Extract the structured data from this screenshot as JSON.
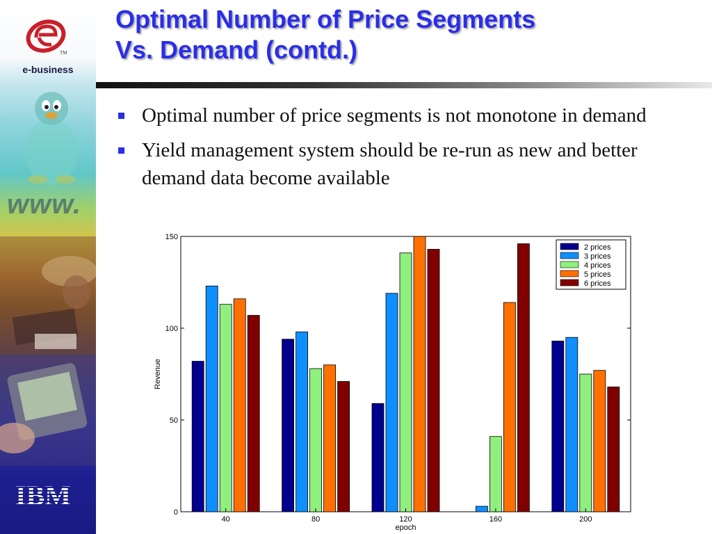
{
  "slide": {
    "title_line1": "Optimal Number of Price Segments",
    "title_line2": "Vs. Demand (contd.)",
    "bullets": [
      "Optimal number of price segments is not monotone in demand",
      "Yield management system should be re-run as new and better demand data become available"
    ]
  },
  "sidebar": {
    "ebusiness_label": "e-business",
    "www_text": "www.",
    "ibm_logo": "IBM",
    "tm_mark": "TM"
  },
  "colors": {
    "title": "#2a2ee8",
    "series": [
      "#00008f",
      "#0f8fff",
      "#8ff07f",
      "#ff7000",
      "#800000"
    ]
  },
  "chart_data": {
    "type": "bar",
    "title": "",
    "xlabel": "epoch",
    "ylabel": "Revenue",
    "categories": [
      "40",
      "80",
      "120",
      "160",
      "200"
    ],
    "ylim": [
      0,
      150
    ],
    "yticks": [
      "0",
      "50",
      "100",
      "150"
    ],
    "legend_position": "top-right",
    "series": [
      {
        "name": "2 prices",
        "values": [
          82,
          94,
          59,
          0,
          93
        ]
      },
      {
        "name": "3 prices",
        "values": [
          123,
          98,
          119,
          3,
          95
        ]
      },
      {
        "name": "4 prices",
        "values": [
          113,
          78,
          141,
          41,
          75
        ]
      },
      {
        "name": "5 prices",
        "values": [
          116,
          80,
          150,
          114,
          77
        ]
      },
      {
        "name": "6 prices",
        "values": [
          107,
          71,
          143,
          146,
          68
        ]
      }
    ]
  }
}
